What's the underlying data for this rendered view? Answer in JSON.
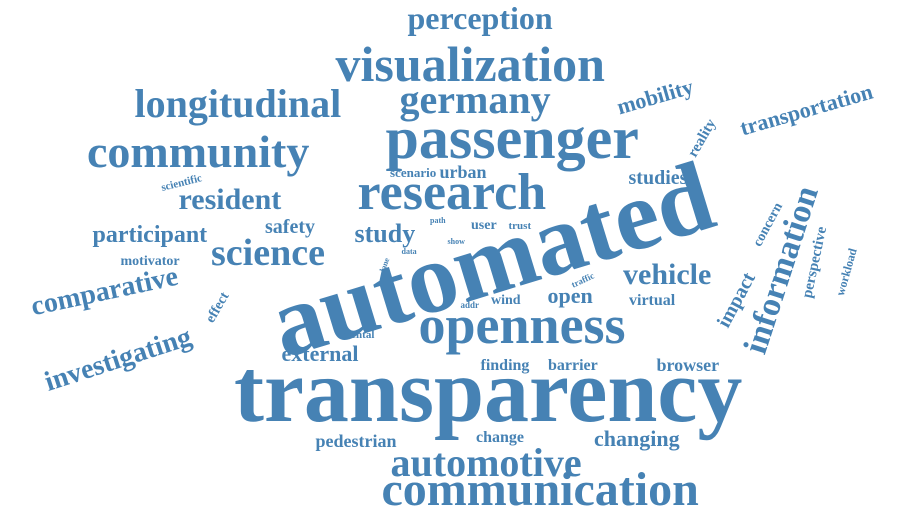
{
  "word_color": "#4682b4",
  "background": "#ffffff",
  "words": [
    "transparency",
    "automated",
    "passenger",
    "research",
    "openness",
    "communication",
    "visualization",
    "automotive",
    "community",
    "longitudinal",
    "germany",
    "information",
    "perception",
    "science",
    "comparative",
    "investigating",
    "resident",
    "vehicle",
    "participant",
    "transportation",
    "study",
    "external",
    "mobility",
    "changing",
    "studies",
    "safety",
    "impact",
    "concern",
    "perspective",
    "open",
    "pedestrian",
    "browser",
    "reality",
    "virtual",
    "change",
    "finding",
    "barrier",
    "workload",
    "motivator",
    "user",
    "wind",
    "effect",
    "urban",
    "scientific",
    "scenario",
    "mental",
    "trust",
    "path",
    "data",
    "show",
    "lane",
    "traffic",
    "addr"
  ]
}
